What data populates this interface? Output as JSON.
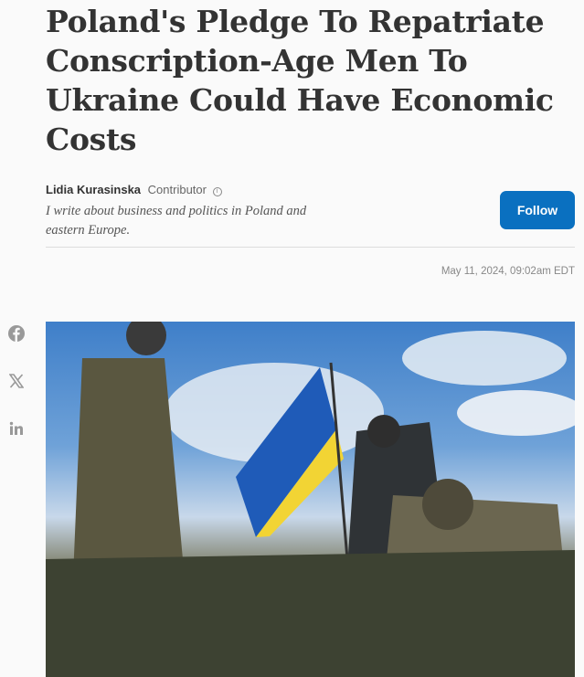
{
  "article": {
    "title": "Poland's Pledge To Repatriate Conscription-Age Men To Ukraine Could Have Economic Costs",
    "author": {
      "name": "Lidia Kurasinska",
      "role": "Contributor",
      "bio": "I write about business and politics in Poland and eastern Europe."
    },
    "follow_label": "Follow",
    "date": "May 11, 2024, 09:02am EDT"
  },
  "share": {
    "icons": [
      "facebook-icon",
      "x-icon",
      "linkedin-icon"
    ]
  },
  "colors": {
    "follow": "#0a70c0",
    "flag_blue": "#1f5bb8",
    "flag_yellow": "#f2d434"
  }
}
